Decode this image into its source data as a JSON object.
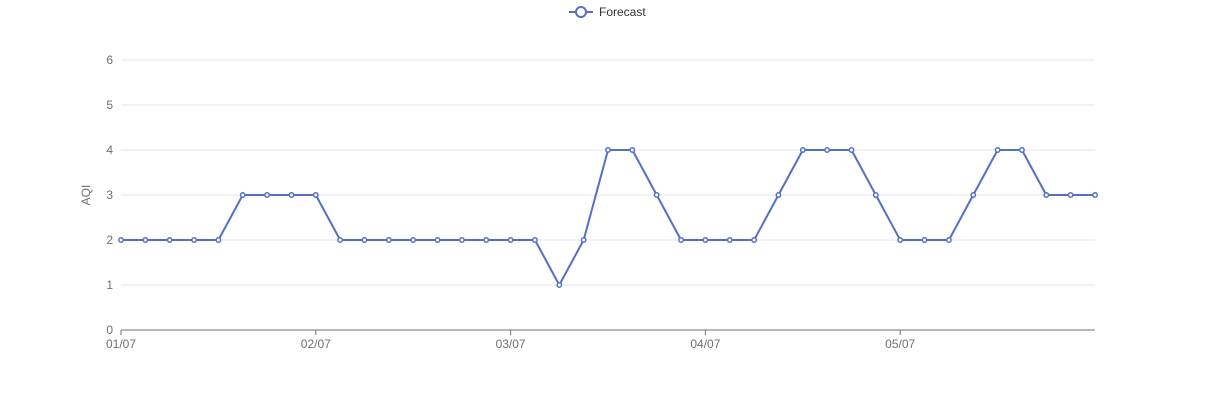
{
  "chart_data": {
    "type": "line",
    "legend": {
      "placement": "top-center",
      "entries": [
        "Forecast"
      ]
    },
    "ylabel": "AQI",
    "ylim": [
      0,
      6
    ],
    "yticks": [
      0,
      1,
      2,
      3,
      4,
      5,
      6
    ],
    "grid": true,
    "x_tick_labels": [
      "01/07",
      "02/07",
      "03/07",
      "04/07",
      "05/07"
    ],
    "points_per_day": 8,
    "series": [
      {
        "name": "Forecast",
        "color": "#5470c6",
        "values": [
          2,
          2,
          2,
          2,
          2,
          3,
          3,
          3,
          3,
          2,
          2,
          2,
          2,
          2,
          2,
          2,
          2,
          2,
          1,
          2,
          4,
          4,
          3,
          2,
          2,
          2,
          2,
          3,
          4,
          4,
          4,
          3,
          2,
          2,
          2,
          3,
          4,
          4,
          3,
          3,
          3
        ]
      }
    ]
  }
}
